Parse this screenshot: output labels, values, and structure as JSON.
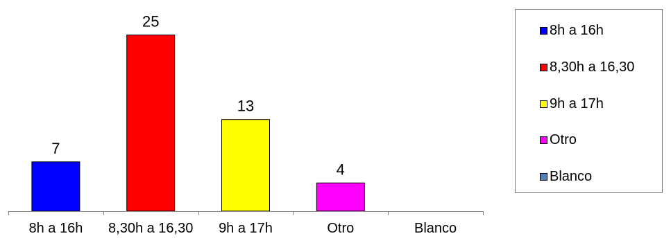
{
  "chart_data": {
    "type": "bar",
    "categories": [
      "8h a 16h",
      "8,30h a 16,30",
      "9h a 17h",
      "Otro",
      "Blanco"
    ],
    "values": [
      7,
      25,
      13,
      4,
      0
    ],
    "data_labels": [
      "7",
      "25",
      "13",
      "4",
      ""
    ],
    "colors": [
      "#0000ff",
      "#ff0000",
      "#ffff00",
      "#ff00ff",
      "#4f81bd"
    ],
    "ylim": [
      0,
      28
    ],
    "grid": false,
    "legend_position": "right",
    "legend": [
      {
        "label": " 8h a 16h",
        "color": "#0000ff"
      },
      {
        "label": "8,30h a 16,30",
        "color": "#ff0000"
      },
      {
        "label": "9h a 17h",
        "color": "#ffff00"
      },
      {
        "label": "Otro",
        "color": "#ff00ff"
      },
      {
        "label": "Blanco",
        "color": "#4f81bd"
      }
    ]
  }
}
